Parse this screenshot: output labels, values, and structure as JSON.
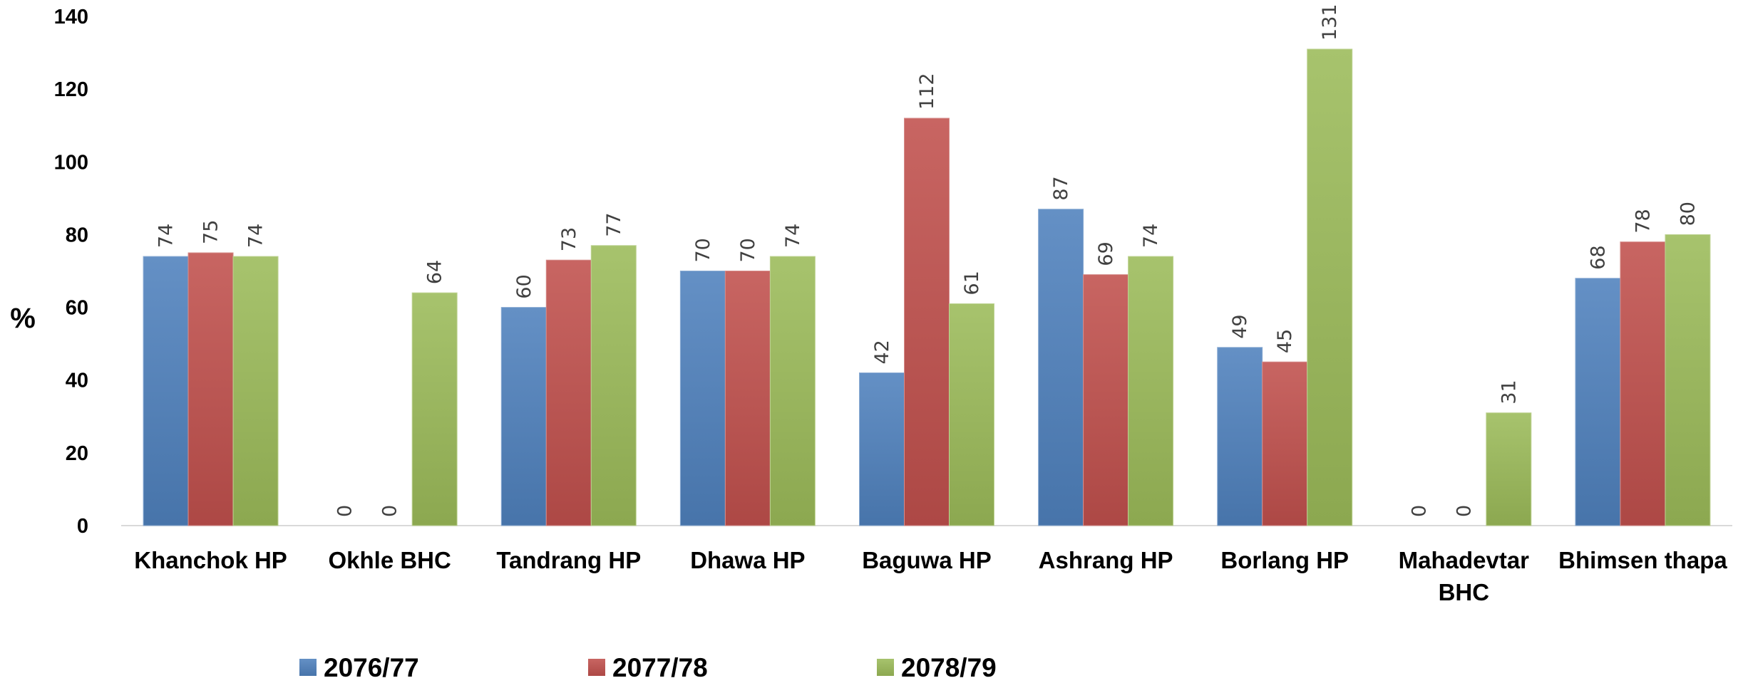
{
  "chart_data": {
    "type": "bar",
    "ylabel": "%",
    "xlabel": "",
    "ylim": [
      0,
      140
    ],
    "yticks": [
      0,
      20,
      40,
      60,
      80,
      100,
      120,
      140
    ],
    "grid": false,
    "legend_position": "bottom",
    "categories": [
      [
        "Khanchok HP"
      ],
      [
        "Okhle BHC"
      ],
      [
        "Tandrang HP"
      ],
      [
        "Dhawa HP"
      ],
      [
        "Baguwa HP"
      ],
      [
        "Ashrang HP"
      ],
      [
        "Borlang HP"
      ],
      [
        "Mahadevtar",
        "BHC"
      ],
      [
        "Bhimsen thapa"
      ]
    ],
    "series": [
      {
        "name": "2076/77",
        "color": "#4F81BD",
        "values": [
          74,
          0,
          60,
          70,
          42,
          87,
          49,
          0,
          68
        ]
      },
      {
        "name": "2077/78",
        "color": "#C0504D",
        "values": [
          75,
          0,
          73,
          70,
          112,
          69,
          45,
          0,
          78
        ]
      },
      {
        "name": "2078/79",
        "color": "#9BBB59",
        "values": [
          74,
          64,
          77,
          74,
          61,
          74,
          131,
          31,
          80
        ]
      }
    ]
  }
}
